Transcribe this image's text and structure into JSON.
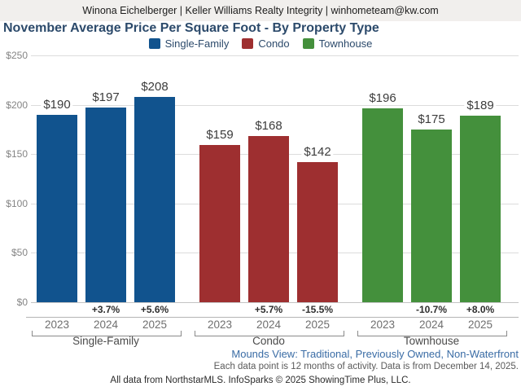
{
  "header": {
    "agent_line": "Winona Eichelberger | Keller Williams Realty Integrity | winhometeam@kw.com"
  },
  "title": "November Average Price Per Square Foot - By Property Type",
  "footer": {
    "market_line": "Mounds View: Traditional, Previously Owned, Non-Waterfront",
    "data_note": "Each data point is 12 months of activity. Data is from December 14, 2025.",
    "attribution": "All data from NorthstarMLS. InfoSparks © 2025 ShowingTime Plus, LLC."
  },
  "chart_data": {
    "type": "bar",
    "title": "November Average Price Per Square Foot - By Property Type",
    "value_prefix": "$",
    "ylim": [
      0,
      250
    ],
    "y_ticks": [
      "$0",
      "$50",
      "$100",
      "$150",
      "$200",
      "$250"
    ],
    "grid": true,
    "legend_position": "top",
    "categories": [
      "2023",
      "2024",
      "2025"
    ],
    "groups": [
      {
        "label": "Single-Family",
        "color": "#11538e",
        "values": [
          190,
          197,
          208
        ],
        "value_labels": [
          "$190",
          "$197",
          "$208"
        ],
        "pct_change": [
          null,
          "+3.7%",
          "+5.6%"
        ]
      },
      {
        "label": "Condo",
        "color": "#9e2f30",
        "values": [
          159,
          168,
          142
        ],
        "value_labels": [
          "$159",
          "$168",
          "$142"
        ],
        "pct_change": [
          null,
          "+5.7%",
          "-15.5%"
        ]
      },
      {
        "label": "Townhouse",
        "color": "#44903c",
        "values": [
          196,
          175,
          189
        ],
        "value_labels": [
          "$196",
          "$175",
          "$189"
        ],
        "pct_change": [
          null,
          "-10.7%",
          "+8.0%"
        ]
      }
    ]
  }
}
